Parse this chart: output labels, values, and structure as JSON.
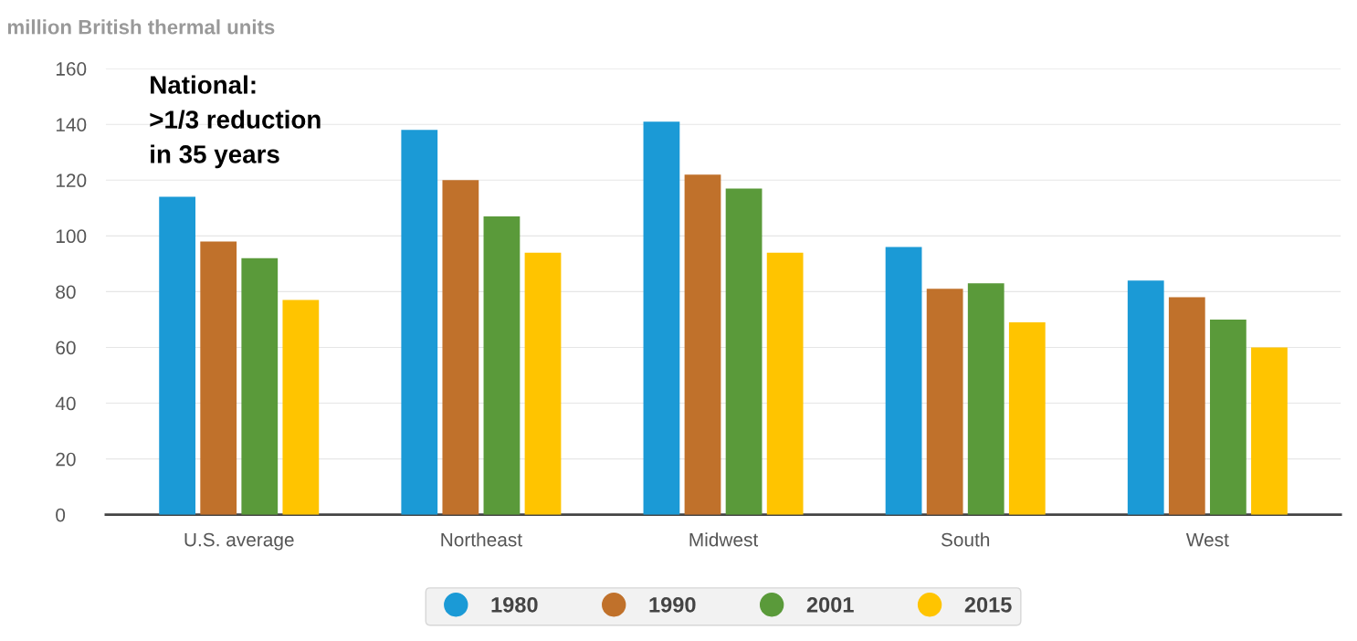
{
  "chart_data": {
    "type": "bar",
    "ylabel": "million British thermal units",
    "categories": [
      "U.S. average",
      "Northeast",
      "Midwest",
      "South",
      "West"
    ],
    "series": [
      {
        "name": "1980",
        "color": "#1b9ad6",
        "values": [
          114,
          138,
          141,
          96,
          84
        ]
      },
      {
        "name": "1990",
        "color": "#c0712b",
        "values": [
          98,
          120,
          122,
          81,
          78
        ]
      },
      {
        "name": "2001",
        "color": "#5a9a3a",
        "values": [
          92,
          107,
          117,
          83,
          70
        ]
      },
      {
        "name": "2015",
        "color": "#ffc400",
        "values": [
          77,
          94,
          94,
          69,
          60
        ]
      }
    ],
    "ylim": [
      0,
      160
    ],
    "yticks": [
      0,
      20,
      40,
      60,
      80,
      100,
      120,
      140,
      160
    ],
    "grid": "y",
    "legend": "bottom",
    "annotations": [
      "National:\n>1/3 reduction\nin 35 years"
    ]
  }
}
